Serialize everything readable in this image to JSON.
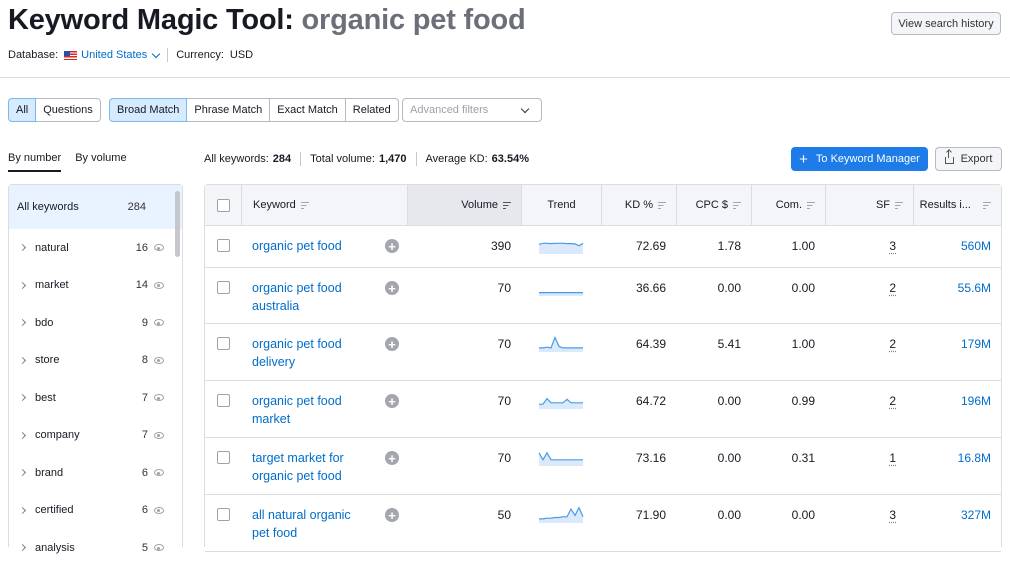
{
  "header": {
    "title": "Keyword Magic Tool:",
    "query": "organic pet food",
    "history_button": "View search history",
    "database_label": "Database:",
    "database_value": "United States",
    "currency_label": "Currency:",
    "currency_value": "USD"
  },
  "filters": {
    "type_tabs": [
      {
        "label": "All",
        "active": true
      },
      {
        "label": "Questions",
        "active": false
      }
    ],
    "match_tabs": [
      {
        "label": "Broad Match",
        "active": true
      },
      {
        "label": "Phrase Match",
        "active": false
      },
      {
        "label": "Exact Match",
        "active": false
      },
      {
        "label": "Related",
        "active": false
      }
    ],
    "advanced_placeholder": "Advanced filters"
  },
  "sidebar": {
    "tabs": [
      {
        "label": "By number",
        "active": true
      },
      {
        "label": "By volume",
        "active": false
      }
    ],
    "all": {
      "label": "All keywords",
      "count": "284"
    },
    "groups": [
      {
        "label": "natural",
        "count": "16"
      },
      {
        "label": "market",
        "count": "14"
      },
      {
        "label": "bdo",
        "count": "9"
      },
      {
        "label": "store",
        "count": "8"
      },
      {
        "label": "best",
        "count": "7"
      },
      {
        "label": "company",
        "count": "7"
      },
      {
        "label": "brand",
        "count": "6"
      },
      {
        "label": "certified",
        "count": "6"
      },
      {
        "label": "analysis",
        "count": "5"
      }
    ]
  },
  "stats": {
    "all_label": "All keywords:",
    "all_value": "284",
    "volume_label": "Total volume:",
    "volume_value": "1,470",
    "kd_label": "Average KD:",
    "kd_value": "63.54%"
  },
  "actions": {
    "keyword_manager": "To Keyword Manager",
    "export": "Export"
  },
  "table": {
    "columns": {
      "keyword": "Keyword",
      "volume": "Volume",
      "trend": "Trend",
      "kd": "KD %",
      "cpc": "CPC $",
      "com": "Com.",
      "sf": "SF",
      "results": "Results i..."
    },
    "rows": [
      {
        "keyword": "organic pet food",
        "volume": "390",
        "kd": "72.69",
        "cpc": "1.78",
        "com": "1.00",
        "sf": "3",
        "results": "560M",
        "trend": [
          0.55,
          0.62,
          0.62,
          0.6,
          0.62,
          0.62,
          0.62,
          0.6,
          0.6,
          0.58,
          0.45,
          0.62
        ]
      },
      {
        "keyword": "organic pet food australia",
        "volume": "70",
        "kd": "36.66",
        "cpc": "0.00",
        "com": "0.00",
        "sf": "2",
        "results": "55.6M",
        "trend": [
          0.1,
          0.1,
          0.1,
          0.1,
          0.1,
          0.1,
          0.1,
          0.1,
          0.1,
          0.1,
          0.1,
          0.1
        ]
      },
      {
        "keyword": "organic pet food delivery",
        "volume": "70",
        "kd": "64.39",
        "cpc": "5.41",
        "com": "1.00",
        "sf": "2",
        "results": "179M",
        "trend": [
          0.15,
          0.15,
          0.2,
          0.15,
          0.9,
          0.25,
          0.15,
          0.15,
          0.15,
          0.15,
          0.15,
          0.15
        ]
      },
      {
        "keyword": "organic pet food market",
        "volume": "70",
        "kd": "64.72",
        "cpc": "0.00",
        "com": "0.99",
        "sf": "2",
        "results": "196M",
        "trend": [
          0.2,
          0.2,
          0.6,
          0.3,
          0.3,
          0.3,
          0.3,
          0.55,
          0.3,
          0.3,
          0.3,
          0.3
        ]
      },
      {
        "keyword": "target market for organic pet food",
        "volume": "70",
        "kd": "73.16",
        "cpc": "0.00",
        "com": "0.31",
        "sf": "1",
        "results": "16.8M",
        "trend": [
          0.8,
          0.3,
          0.8,
          0.3,
          0.3,
          0.3,
          0.3,
          0.3,
          0.3,
          0.3,
          0.3,
          0.3
        ]
      },
      {
        "keyword": "all natural organic pet food",
        "volume": "50",
        "kd": "71.90",
        "cpc": "0.00",
        "com": "0.00",
        "sf": "3",
        "results": "327M",
        "trend": [
          0.15,
          0.15,
          0.2,
          0.2,
          0.25,
          0.25,
          0.3,
          0.3,
          0.85,
          0.4,
          0.95,
          0.3
        ]
      }
    ]
  },
  "colors": {
    "accent": "#006dca",
    "primary_button": "#1d7ce8",
    "trend_line": "#4a9ae8"
  }
}
